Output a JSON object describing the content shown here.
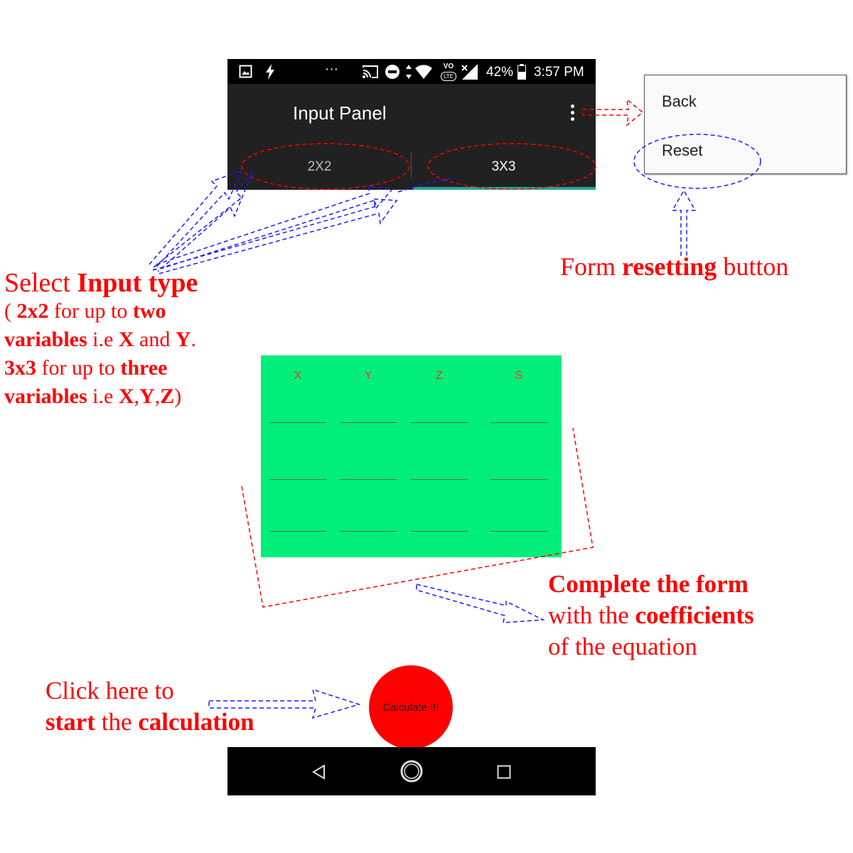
{
  "status_bar": {
    "icons_left": [
      "image-icon",
      "flash-icon",
      "more-dots-icon"
    ],
    "icons_right": [
      "cast-icon",
      "do-not-disturb-icon",
      "data-arrows-icon",
      "wifi-icon",
      "volte-icon",
      "signal-icon",
      "battery-icon"
    ],
    "dots": "···",
    "volte_label": "VO",
    "lte_label": "LTE",
    "battery": "42%",
    "time": "3:57 PM"
  },
  "app_bar": {
    "title": "Input Panel",
    "menu_icon": "overflow-menu-icon"
  },
  "tabs": [
    {
      "label": "2X2",
      "selected": false
    },
    {
      "label": "3X3",
      "selected": true
    }
  ],
  "menu": {
    "items": [
      "Back",
      "Reset"
    ]
  },
  "form": {
    "columns": [
      "X",
      "Y",
      "Z",
      "S"
    ],
    "rows": 3,
    "background": "#02ee7a",
    "header_color": "#e53935"
  },
  "calculate": {
    "label": "Calculate !!!",
    "color": "#ff0000"
  },
  "nav_bar": {
    "icons": [
      "back-triangle-icon",
      "home-circle-icon",
      "recents-square-icon"
    ]
  },
  "annotations": {
    "input_type": {
      "l1_a": "Select ",
      "l1_b": "Input type",
      "l2_a": "( ",
      "l2_b": "2x2",
      "l2_c": " for up to ",
      "l2_d": "two",
      "l3_a": "variables",
      "l3_b": " i.e ",
      "l3_c": "X",
      "l3_d": " and ",
      "l3_e": "Y",
      "l3_f": ".",
      "l4_a": "3x3",
      "l4_b": " for up to ",
      "l4_c": "three",
      "l5_a": "variables",
      "l5_b": " i.e ",
      "l5_c": "X",
      "l5_d": ",",
      "l5_e": "Y",
      "l5_f": ",",
      "l5_g": "Z",
      "l5_h": ")"
    },
    "reset": {
      "a": "Form ",
      "b": "resetting",
      "c": " button"
    },
    "complete": {
      "l1": "Complete the form",
      "l2_a": "with the ",
      "l2_b": "coefficients",
      "l3": "of the equation"
    },
    "calc": {
      "l1": "Click here to",
      "l2_a": "start",
      "l2_b": " the ",
      "l2_c": "calculation"
    },
    "annotation_color": "#ff0000",
    "arrow_color": "#1a1aff"
  }
}
